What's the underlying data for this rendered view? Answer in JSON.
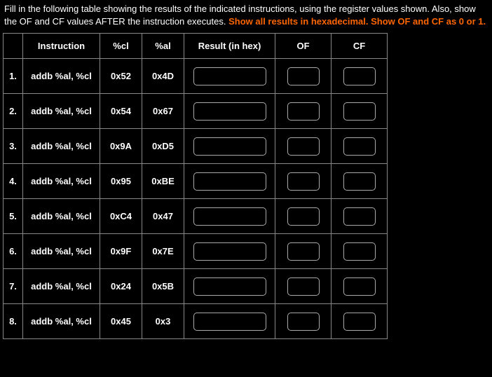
{
  "prompt": {
    "part1": "Fill in the following table showing the results of the indicated instructions, using the register values shown. Also, show the OF and CF values AFTER the instruction executes. ",
    "emph": "Show all results in hexadecimal. Show OF and CF as 0 or 1."
  },
  "headers": {
    "blank": "",
    "instruction": "Instruction",
    "cl": "%cl",
    "al": "%al",
    "result": "Result (in hex)",
    "of": "OF",
    "cf": "CF"
  },
  "rows": [
    {
      "n": "1.",
      "instr": "addb %al, %cl",
      "cl": "0x52",
      "al": "0x4D",
      "res": "",
      "of": "",
      "cf": ""
    },
    {
      "n": "2.",
      "instr": "addb %al, %cl",
      "cl": "0x54",
      "al": "0x67",
      "res": "",
      "of": "",
      "cf": ""
    },
    {
      "n": "3.",
      "instr": "addb %al, %cl",
      "cl": "0x9A",
      "al": "0xD5",
      "res": "",
      "of": "",
      "cf": ""
    },
    {
      "n": "4.",
      "instr": "addb %al, %cl",
      "cl": "0x95",
      "al": "0xBE",
      "res": "",
      "of": "",
      "cf": ""
    },
    {
      "n": "5.",
      "instr": "addb %al, %cl",
      "cl": "0xC4",
      "al": "0x47",
      "res": "",
      "of": "",
      "cf": ""
    },
    {
      "n": "6.",
      "instr": "addb %al, %cl",
      "cl": "0x9F",
      "al": "0x7E",
      "res": "",
      "of": "",
      "cf": ""
    },
    {
      "n": "7.",
      "instr": "addb %al, %cl",
      "cl": "0x24",
      "al": "0x5B",
      "res": "",
      "of": "",
      "cf": ""
    },
    {
      "n": "8.",
      "instr": "addb %al, %cl",
      "cl": "0x45",
      "al": "0x3",
      "res": "",
      "of": "",
      "cf": ""
    }
  ],
  "colors": {
    "background": "#000000",
    "text": "#ffffff",
    "accent": "#ff6600",
    "border": "#888888"
  }
}
